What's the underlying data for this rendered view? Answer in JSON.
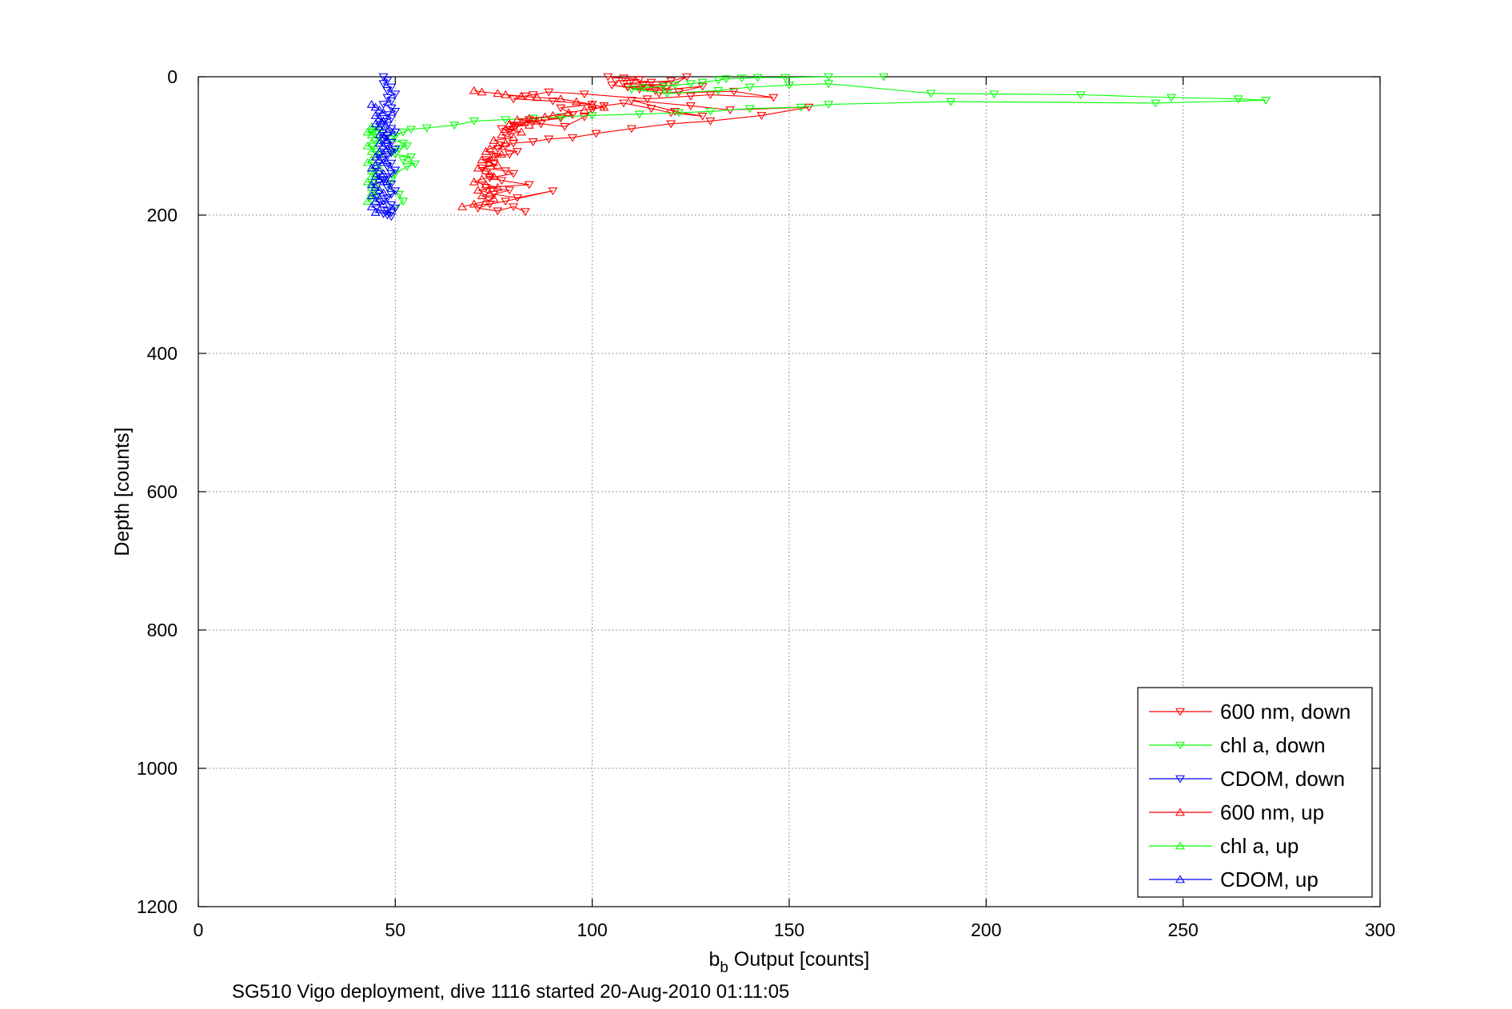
{
  "chart_data": {
    "type": "line",
    "title": "",
    "xlabel_main": "b",
    "xlabel_sub": "b",
    "xlabel_rest": " Output [counts]",
    "ylabel": "Depth [counts]",
    "caption": "SG510 Vigo deployment, dive 1116 started 20-Aug-2010 01:11:05",
    "xlim": [
      0,
      300
    ],
    "ylim": [
      0,
      1200
    ],
    "y_reversed": true,
    "grid": true,
    "legend_position": "bottom-right",
    "x_ticks": [
      0,
      50,
      100,
      150,
      200,
      250,
      300
    ],
    "y_ticks": [
      0,
      200,
      400,
      600,
      800,
      1000,
      1200
    ],
    "x_tick_labels": [
      "0",
      "50",
      "100",
      "150",
      "200",
      "250",
      "300"
    ],
    "y_tick_labels": [
      "0",
      "200",
      "400",
      "600",
      "800",
      "1000",
      "1200"
    ],
    "series": [
      {
        "name": "600 nm, down",
        "color": "#ff0000",
        "marker": "triangle-down",
        "x": [
          104,
          108,
          112,
          106,
          110,
          115,
          120,
          108,
          113,
          118,
          109,
          114,
          124,
          119,
          112,
          105,
          109,
          116,
          128,
          122,
          117,
          136,
          146,
          130,
          125,
          114,
          98,
          89,
          85,
          83,
          80,
          90,
          100,
          92,
          95,
          92,
          85,
          80,
          77,
          79,
          84,
          87,
          93,
          98,
          100,
          103,
          108,
          115,
          120,
          128,
          121,
          110,
          125,
          135,
          155,
          143,
          130,
          120,
          110,
          101,
          95,
          89,
          85,
          80,
          78,
          76,
          81,
          79,
          75,
          73,
          75,
          72,
          78,
          80,
          74,
          77,
          84,
          73,
          79,
          75,
          81,
          90,
          78,
          74,
          71,
          76,
          80,
          83
        ],
        "y": [
          0,
          2,
          4,
          6,
          5,
          8,
          6,
          10,
          11,
          12,
          14,
          16,
          0,
          17,
          18,
          12,
          15,
          20,
          14,
          22,
          24,
          21,
          30,
          26,
          28,
          32,
          25,
          22,
          26,
          28,
          32,
          35,
          40,
          45,
          55,
          60,
          65,
          70,
          75,
          80,
          62,
          68,
          72,
          58,
          48,
          42,
          38,
          46,
          52,
          57,
          50,
          34,
          42,
          48,
          44,
          56,
          64,
          68,
          75,
          82,
          88,
          90,
          94,
          96,
          100,
          104,
          108,
          112,
          116,
          120,
          126,
          132,
          136,
          140,
          146,
          150,
          156,
          160,
          164,
          170,
          175,
          165,
          180,
          184,
          190,
          194,
          188,
          195
        ]
      },
      {
        "name": "chl a, down",
        "color": "#00ff00",
        "marker": "triangle-down",
        "x": [
          174,
          160,
          149,
          142,
          138,
          134,
          132,
          128,
          125,
          121,
          118,
          113,
          110,
          119,
          132,
          140,
          150,
          160,
          186,
          202,
          224,
          247,
          264,
          271,
          243,
          191,
          160,
          153,
          140,
          130,
          122,
          112,
          100,
          92,
          85,
          78,
          70,
          65,
          58,
          54,
          52,
          50,
          49,
          52,
          53,
          51,
          49,
          50,
          54,
          52,
          55,
          53,
          50,
          49,
          48,
          51,
          52,
          50
        ],
        "y": [
          0,
          0,
          1,
          1,
          2,
          3,
          5,
          8,
          10,
          12,
          14,
          16,
          18,
          24,
          20,
          15,
          12,
          10,
          24,
          25,
          26,
          30,
          32,
          34,
          38,
          36,
          40,
          44,
          46,
          50,
          52,
          54,
          56,
          58,
          60,
          62,
          64,
          70,
          74,
          76,
          80,
          86,
          90,
          96,
          100,
          104,
          108,
          112,
          116,
          120,
          126,
          130,
          140,
          150,
          160,
          170,
          180,
          190
        ]
      },
      {
        "name": "CDOM, down",
        "color": "#0000ff",
        "marker": "triangle-down",
        "x": [
          47,
          48,
          47,
          49,
          48,
          50,
          48,
          49,
          47,
          49,
          50,
          48,
          49,
          47,
          48,
          49,
          50,
          48,
          47,
          49,
          48,
          50,
          49,
          48,
          47,
          49,
          48,
          50,
          49,
          48,
          47,
          49,
          48,
          50,
          49,
          48,
          47,
          49,
          50,
          48,
          49,
          47,
          48,
          49
        ],
        "y": [
          0,
          5,
          10,
          15,
          20,
          25,
          30,
          35,
          40,
          45,
          50,
          55,
          60,
          65,
          70,
          75,
          80,
          85,
          90,
          95,
          100,
          105,
          110,
          115,
          120,
          125,
          130,
          135,
          140,
          145,
          150,
          155,
          160,
          165,
          170,
          175,
          180,
          185,
          190,
          194,
          196,
          198,
          200,
          202
        ]
      },
      {
        "name": "600 nm, up",
        "color": "#ff0000",
        "marker": "triangle-up",
        "x": [
          67,
          70,
          73,
          75,
          72,
          74,
          71,
          76,
          73,
          70,
          72,
          75,
          74,
          73,
          71,
          76,
          74,
          72,
          75,
          77,
          73,
          74,
          76,
          78,
          75,
          80,
          77,
          82,
          78,
          80,
          84,
          79,
          82,
          86,
          81,
          84,
          88,
          90,
          94,
          98,
          103,
          100,
          96,
          92,
          86,
          82,
          78,
          76,
          72,
          70
        ],
        "y": [
          188,
          184,
          180,
          176,
          172,
          168,
          164,
          160,
          156,
          152,
          148,
          144,
          140,
          136,
          132,
          128,
          124,
          120,
          116,
          112,
          108,
          104,
          100,
          96,
          92,
          88,
          84,
          80,
          76,
          72,
          70,
          68,
          66,
          64,
          62,
          60,
          58,
          56,
          52,
          48,
          44,
          40,
          36,
          32,
          30,
          28,
          26,
          24,
          22,
          20
        ]
      },
      {
        "name": "chl a, up",
        "color": "#00ff00",
        "marker": "triangle-up",
        "x": [
          43,
          44,
          45,
          44,
          46,
          44,
          45,
          43,
          46,
          44,
          45,
          44,
          46,
          45,
          43,
          44,
          45,
          46,
          44,
          45,
          43,
          44,
          46,
          45,
          44,
          43,
          45,
          44,
          46,
          44
        ],
        "y": [
          180,
          176,
          172,
          168,
          164,
          160,
          156,
          152,
          148,
          144,
          140,
          136,
          132,
          128,
          124,
          120,
          116,
          112,
          108,
          104,
          100,
          96,
          92,
          88,
          84,
          80,
          78,
          76,
          74,
          72
        ]
      },
      {
        "name": "CDOM, up",
        "color": "#0000ff",
        "marker": "triangle-up",
        "x": [
          45,
          46,
          44,
          47,
          45,
          46,
          44,
          47,
          46,
          45,
          44,
          47,
          46,
          45,
          47,
          46,
          44,
          45,
          47,
          46,
          45,
          47,
          46,
          48,
          47,
          46,
          48,
          47,
          46,
          48,
          47,
          46,
          45,
          47,
          46,
          45,
          47,
          46,
          45,
          44
        ],
        "y": [
          196,
          192,
          188,
          184,
          180,
          176,
          172,
          168,
          164,
          160,
          156,
          152,
          148,
          144,
          140,
          136,
          132,
          128,
          124,
          120,
          116,
          112,
          108,
          104,
          100,
          96,
          92,
          88,
          84,
          80,
          76,
          72,
          68,
          64,
          60,
          56,
          52,
          48,
          44,
          40
        ]
      }
    ]
  }
}
